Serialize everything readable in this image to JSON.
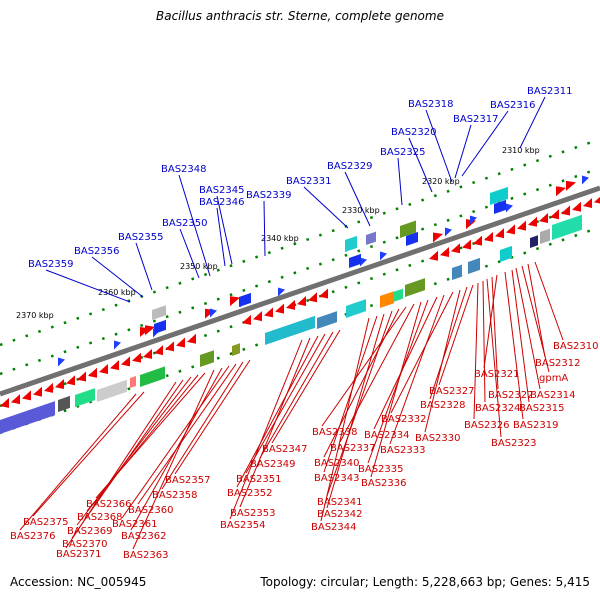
{
  "title": "Bacillus anthracis str. Sterne, complete genome",
  "accession_label": "Accession: NC_005945",
  "topology_label": "Topology: circular; Length: 5,228,663 bp; Genes: 5,415",
  "colors": {
    "backbone": "#707070",
    "gene_marker": "#ff0000",
    "label_upper": "#0000cc",
    "label_lower": "#cc0000",
    "tick": "#008000"
  },
  "kbp_ticks": [
    "2310 kbp",
    "2320 kbp",
    "2330 kbp",
    "2340 kbp",
    "2350 kbp",
    "2360 kbp",
    "2370 kbp"
  ],
  "upper_genes": [
    "BAS2311",
    "BAS2316",
    "BAS2317",
    "BAS2318",
    "BAS2320",
    "BAS2325",
    "BAS2329",
    "BAS2331",
    "BAS2339",
    "BAS2345",
    "BAS2346",
    "BAS2348",
    "BAS2350",
    "BAS2355",
    "BAS2356",
    "BAS2359"
  ],
  "lower_genes": [
    "BAS2310",
    "BAS2312",
    "gpmA",
    "BAS2314",
    "BAS2315",
    "BAS2319",
    "BAS2321",
    "BAS2322",
    "BAS2323",
    "BAS2324",
    "BAS2326",
    "BAS2327",
    "BAS2328",
    "BAS2330",
    "BAS2332",
    "BAS2333",
    "BAS2334",
    "BAS2335",
    "BAS2336",
    "BAS2337",
    "BAS2338",
    "BAS2340",
    "BAS2341",
    "BAS2342",
    "BAS2343",
    "BAS2344",
    "BAS2347",
    "BAS2349",
    "BAS2351",
    "BAS2352",
    "BAS2353",
    "BAS2354",
    "BAS2357",
    "BAS2358",
    "BAS2360",
    "BAS2361",
    "BAS2362",
    "BAS2363",
    "BAS2366",
    "BAS2368",
    "BAS2369",
    "BAS2370",
    "BAS2371",
    "BAS2375",
    "BAS2376"
  ]
}
